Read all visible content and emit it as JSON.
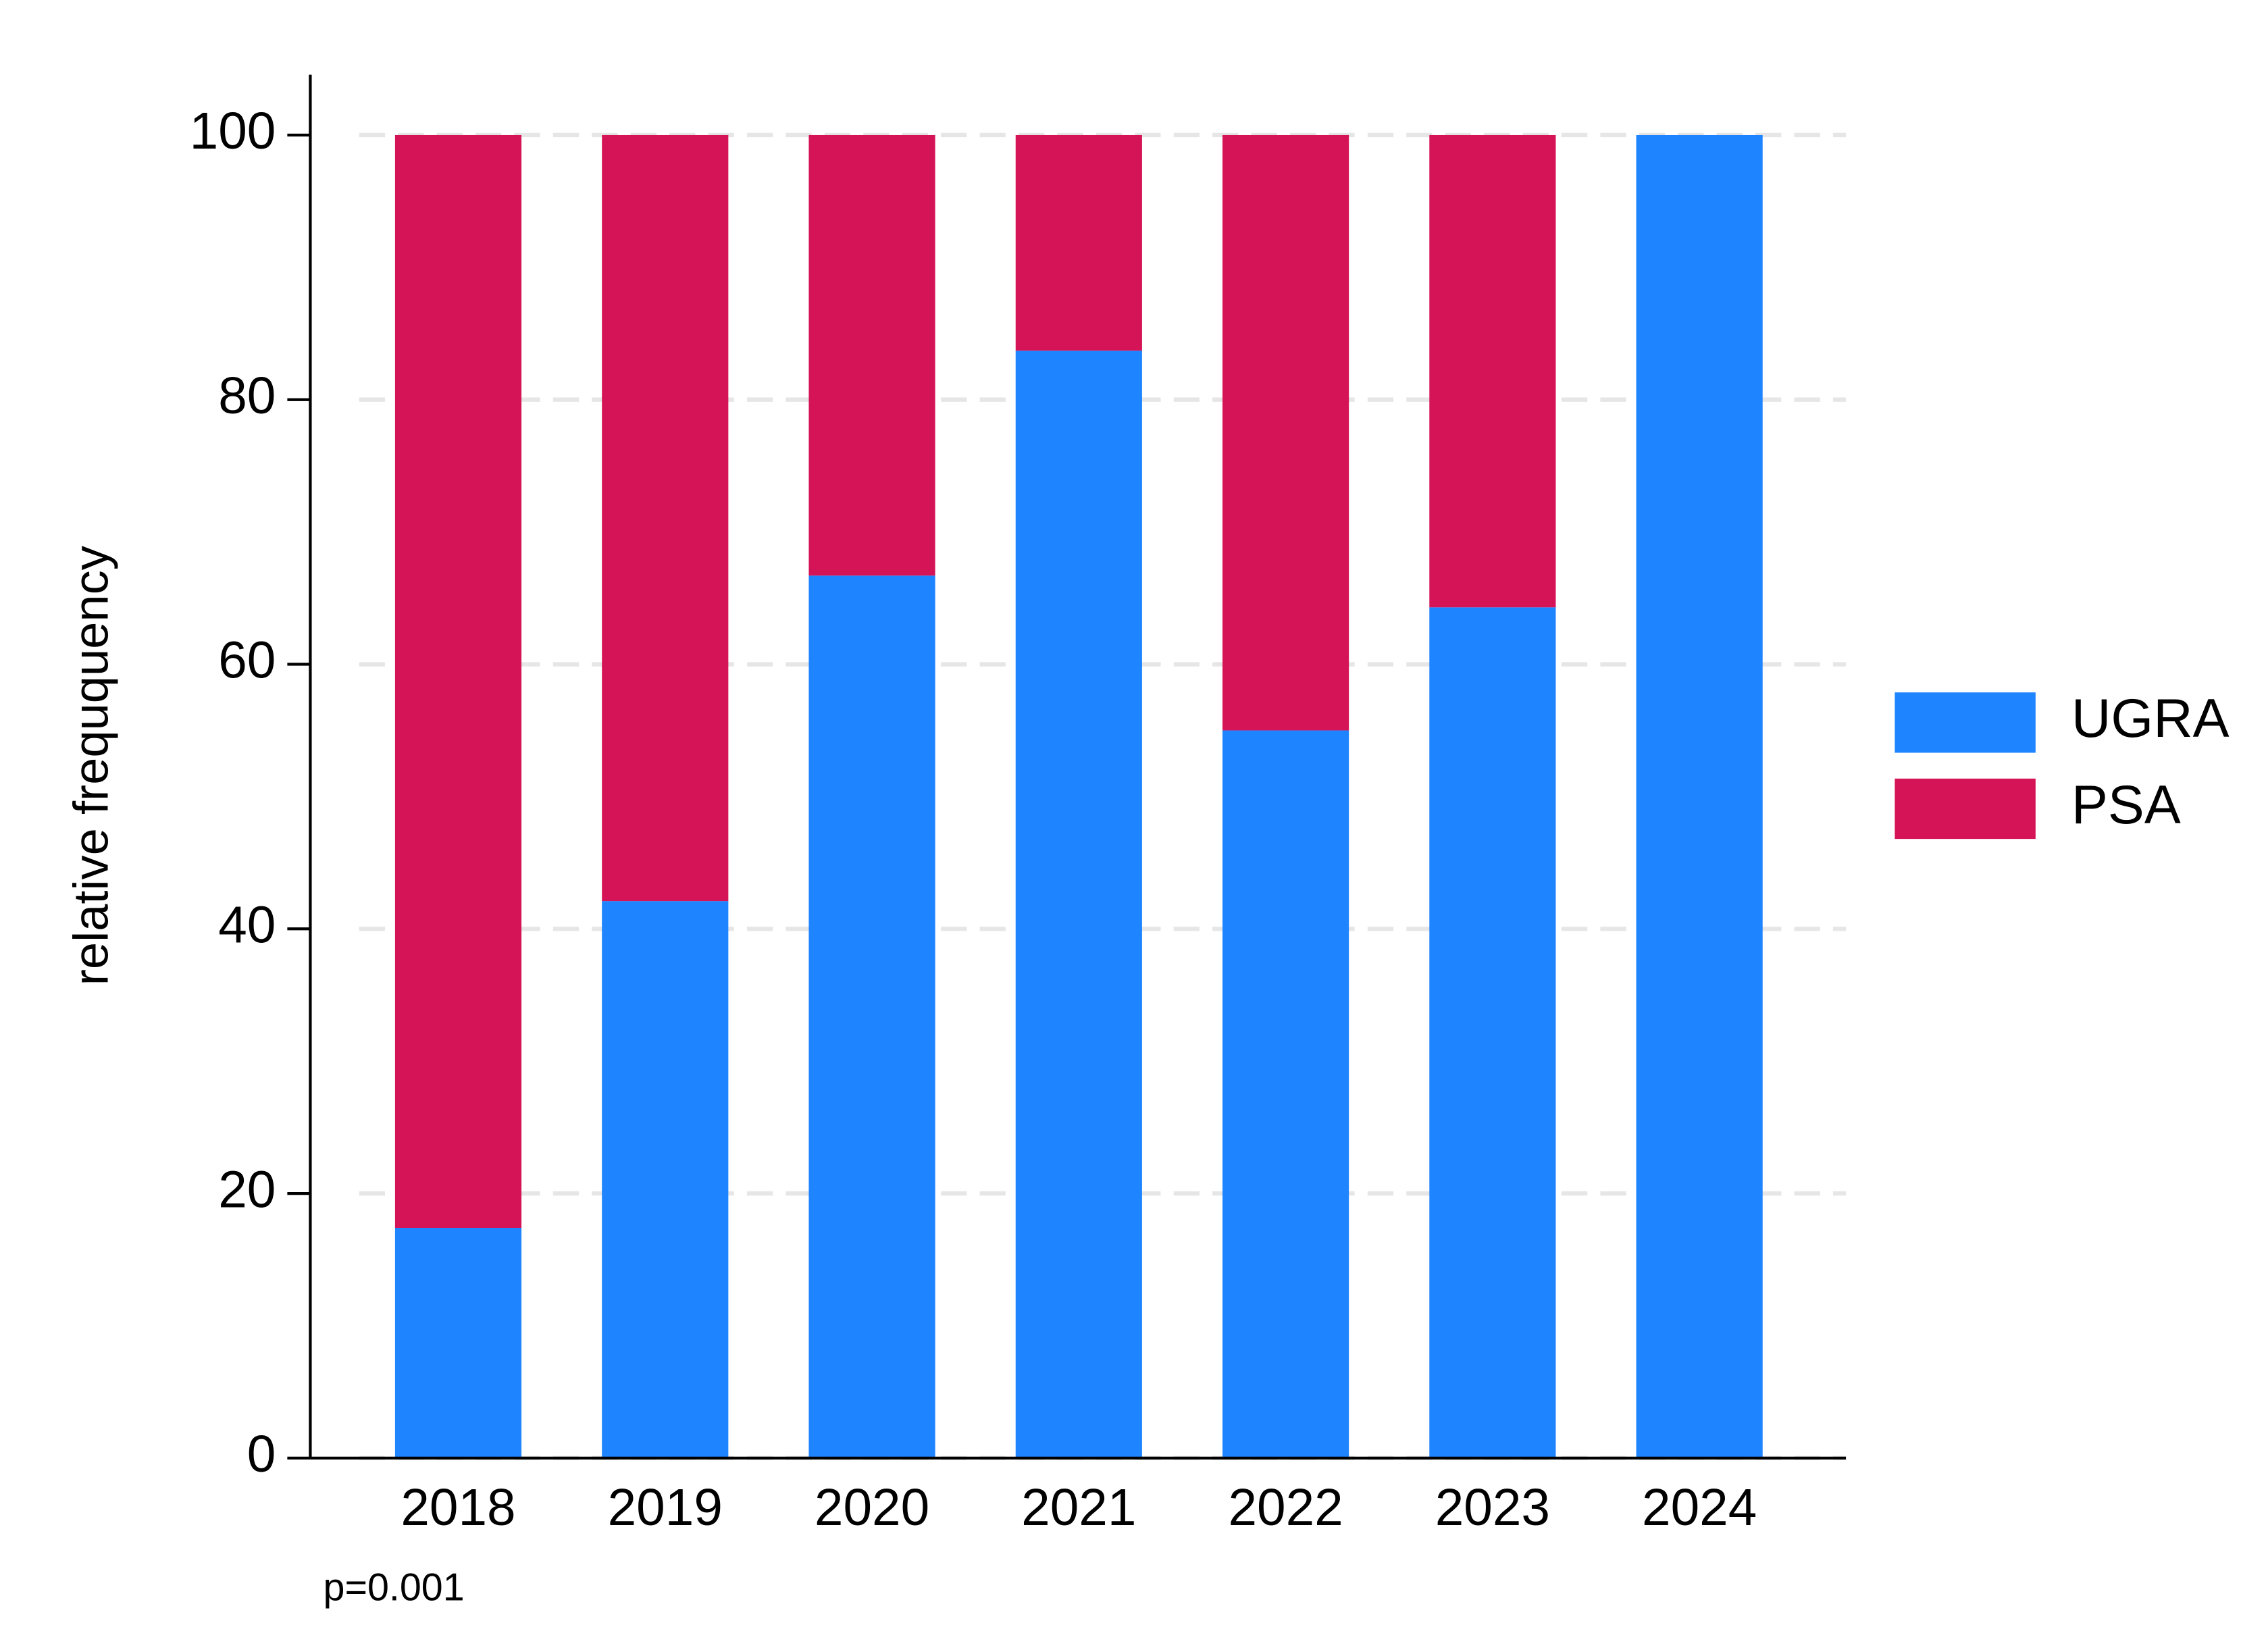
{
  "chart_data": {
    "type": "stacked-bar",
    "y_label": "relative freququency",
    "annotation": "p=0.001",
    "categories": [
      "2018",
      "2019",
      "2020",
      "2021",
      "2022",
      "2023",
      "2024"
    ],
    "series": [
      {
        "name": "UGRA",
        "color": "#1e84ff",
        "values": [
          17.4,
          42.1,
          66.7,
          83.7,
          55,
          64.3,
          100
        ]
      },
      {
        "name": "PSA",
        "color": "#d51457",
        "values": [
          82.6,
          57.9,
          33.3,
          16.3,
          45,
          35.7,
          0
        ]
      }
    ],
    "ylim": [
      0,
      105
    ],
    "yticks": [
      0,
      20,
      40,
      60,
      80,
      100
    ],
    "grid": true,
    "legend": "right"
  }
}
